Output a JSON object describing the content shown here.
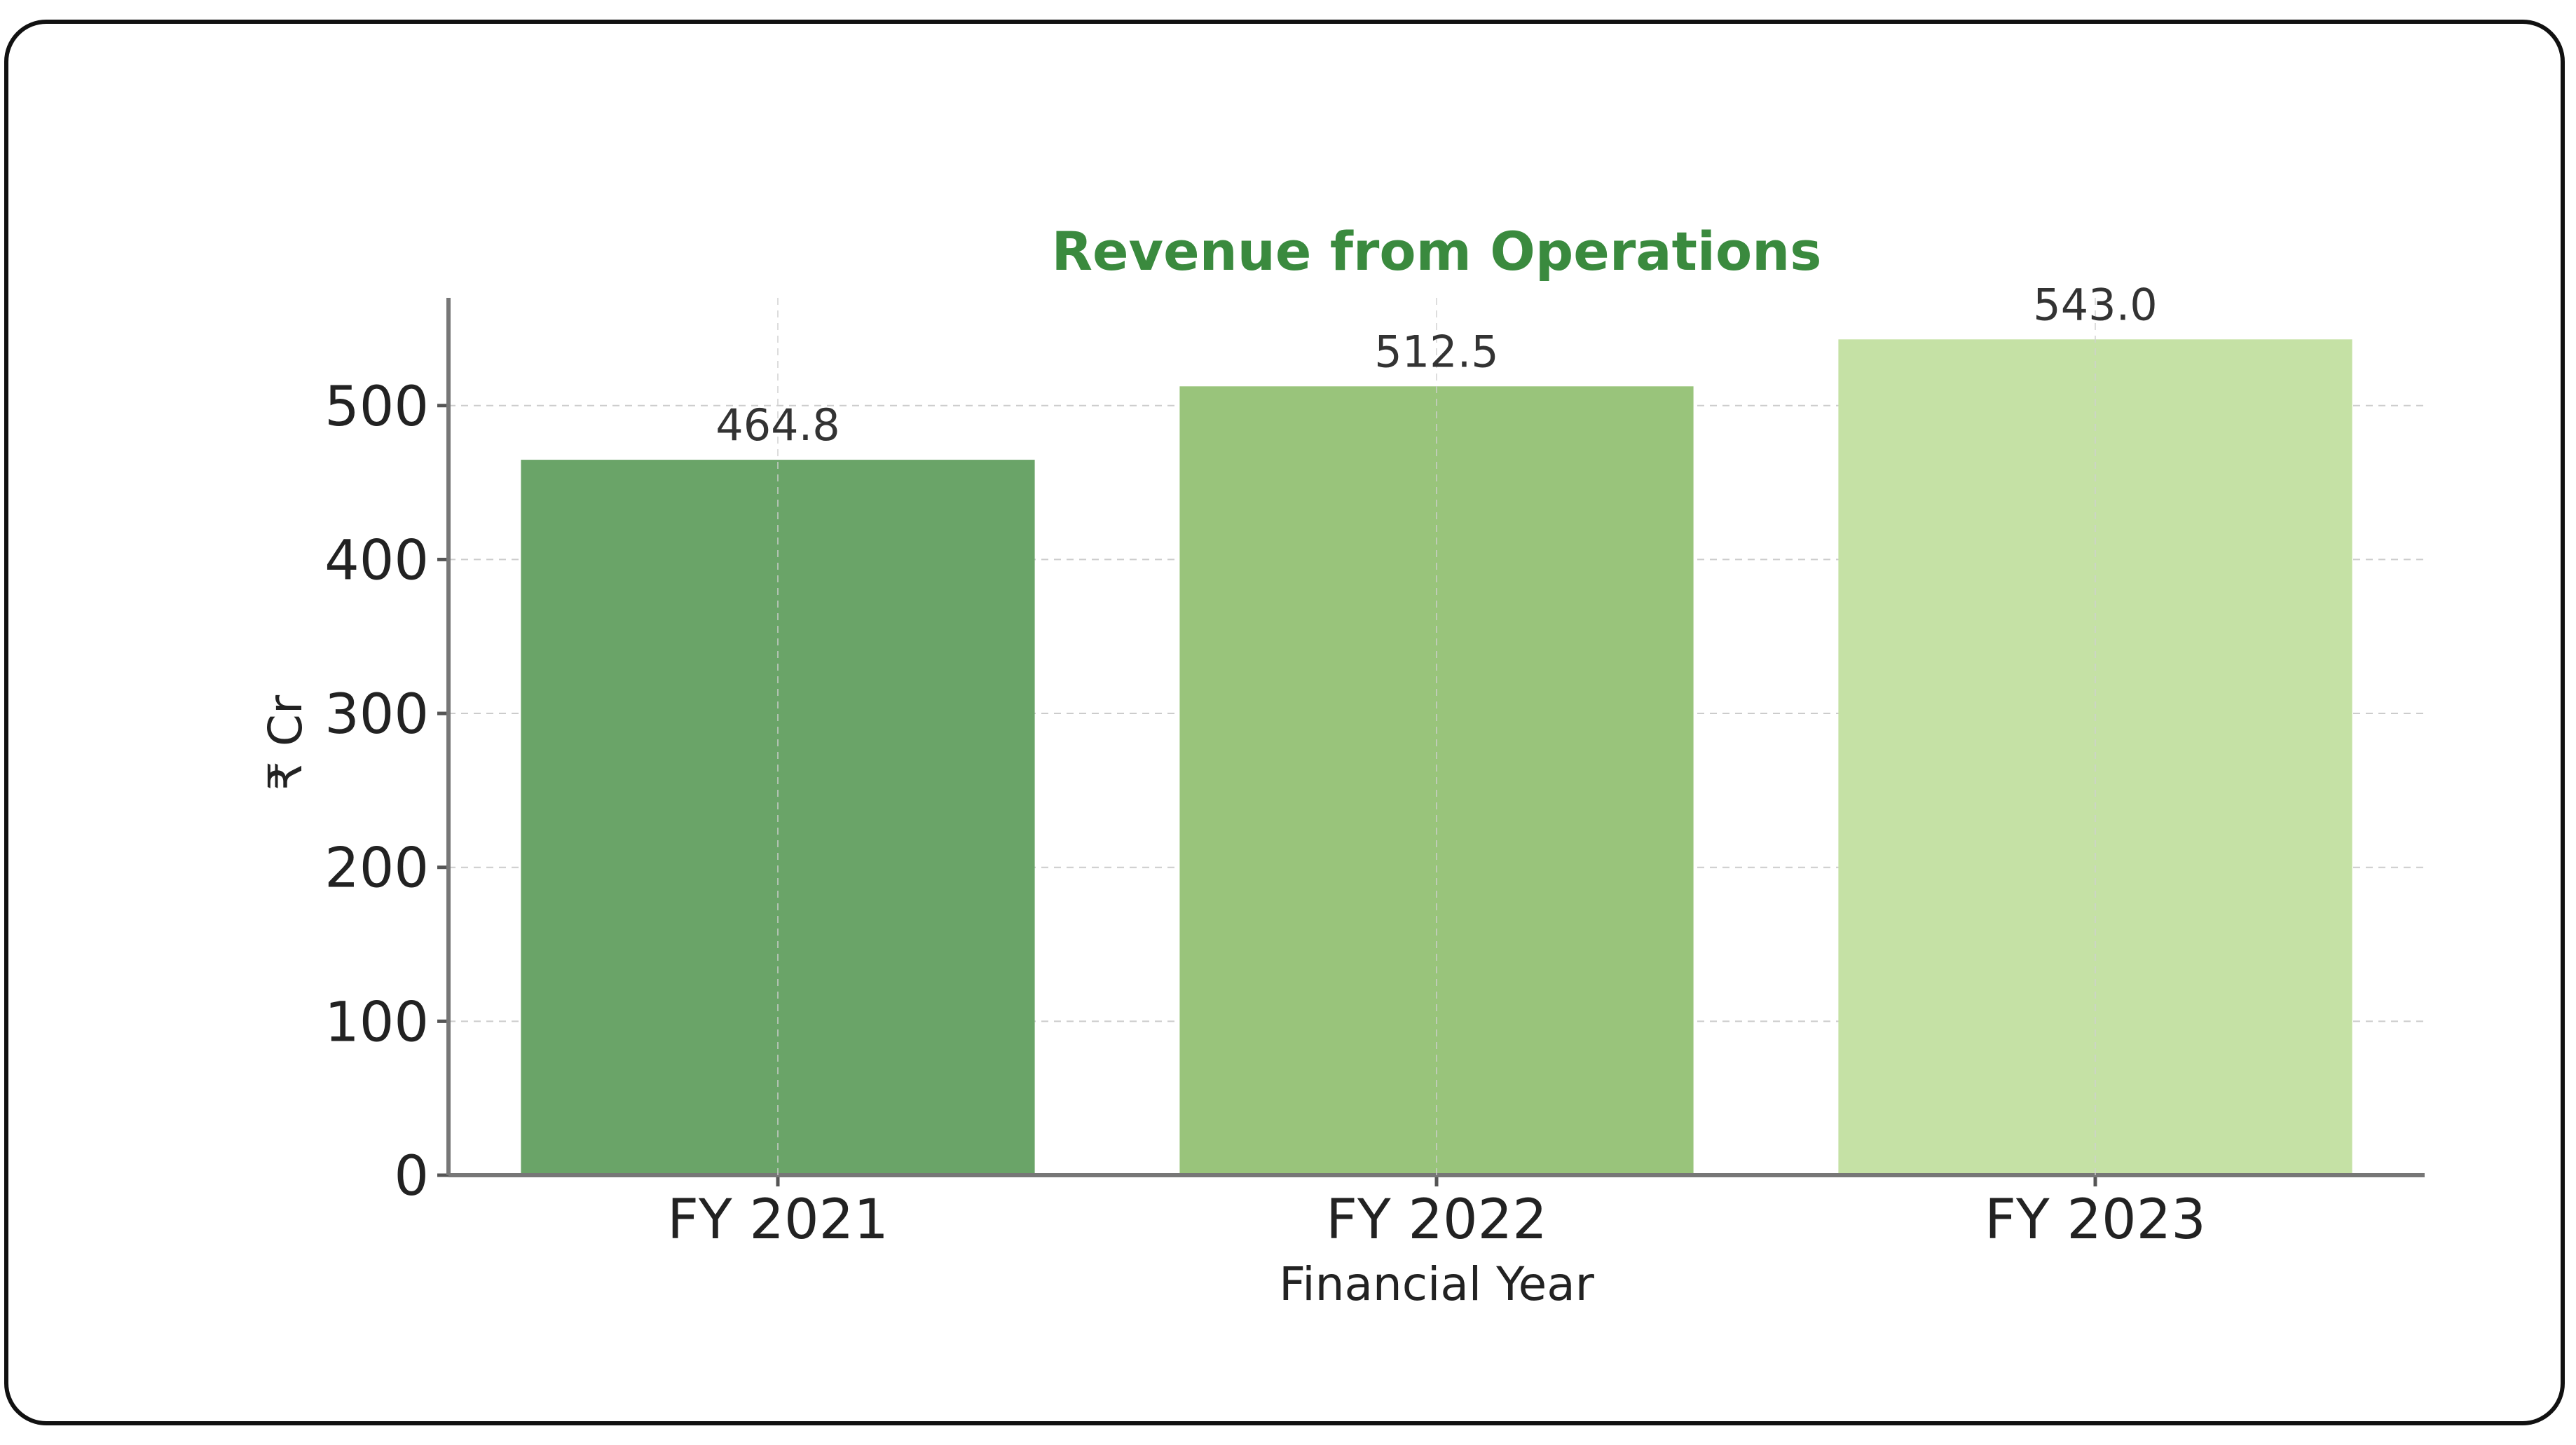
{
  "chart_data": {
    "type": "bar",
    "title": "Revenue from Operations",
    "xlabel": "Financial Year",
    "ylabel": "₹ Cr",
    "categories": [
      "FY 2021",
      "FY 2022",
      "FY 2023"
    ],
    "values": [
      464.8,
      512.5,
      543.0
    ],
    "value_labels": [
      "464.8",
      "512.5",
      "543.0"
    ],
    "ylim": [
      0,
      570
    ],
    "yticks": [
      0,
      100,
      200,
      300,
      400,
      500
    ],
    "grid": true,
    "colors": [
      "#6aa468",
      "#99c47b",
      "#c5e1a5"
    ],
    "title_color": "#3a8a3e"
  }
}
